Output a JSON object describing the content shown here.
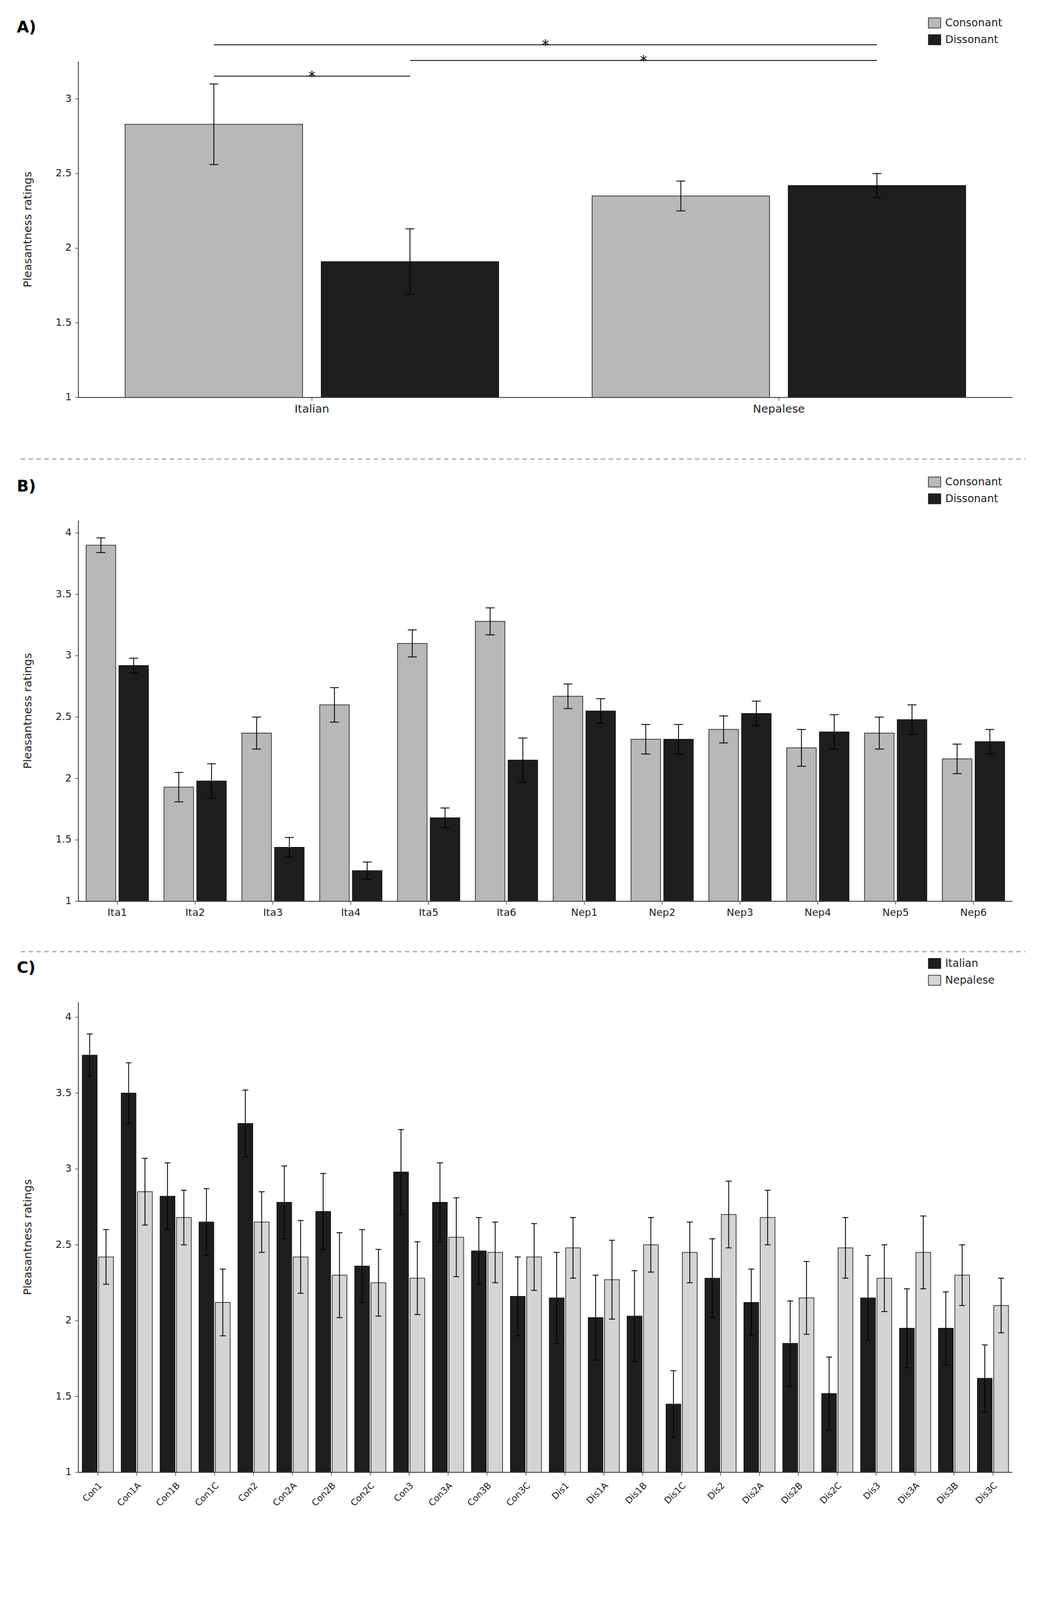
{
  "chart_data": [
    {
      "type": "bar",
      "title": "A)",
      "categories": [
        "Italian",
        "Nepalese"
      ],
      "series": [
        {
          "name": "Consonant",
          "color": "#b8b8b8",
          "values": [
            2.83,
            2.35
          ],
          "errors": [
            0.27,
            0.1
          ]
        },
        {
          "name": "Dissonant",
          "color": "#1e1e1e",
          "values": [
            1.91,
            2.42
          ],
          "errors": [
            0.22,
            0.08
          ]
        }
      ],
      "ylabel": "Pleasantness ratings",
      "ylim": [
        1,
        3.25
      ],
      "yticks": [
        1,
        1.5,
        2,
        2.5,
        3
      ],
      "grid": false,
      "legend": "upper right",
      "annotations": [
        {
          "text": "*",
          "between": [
            [
              0,
              0
            ],
            [
              1,
              0
            ]
          ]
        },
        {
          "text": "*",
          "between": [
            [
              0,
              0
            ],
            [
              1,
              1
            ]
          ]
        },
        {
          "text": "*",
          "between": [
            [
              1,
              0
            ],
            [
              1,
              1
            ]
          ]
        }
      ]
    },
    {
      "type": "bar",
      "title": "B)",
      "categories": [
        "Ita1",
        "Ita2",
        "Ita3",
        "Ita4",
        "Ita5",
        "Ita6",
        "Nep1",
        "Nep2",
        "Nep3",
        "Nep4",
        "Nep5",
        "Nep6"
      ],
      "series": [
        {
          "name": "Consonant",
          "color": "#b8b8b8",
          "values": [
            3.9,
            1.93,
            2.37,
            2.6,
            3.1,
            3.28,
            2.67,
            2.32,
            2.4,
            2.25,
            2.37,
            2.16
          ],
          "errors": [
            0.06,
            0.12,
            0.13,
            0.14,
            0.11,
            0.11,
            0.1,
            0.12,
            0.11,
            0.15,
            0.13,
            0.12
          ]
        },
        {
          "name": "Dissonant",
          "color": "#1e1e1e",
          "values": [
            2.92,
            1.98,
            1.44,
            1.25,
            1.68,
            2.15,
            2.55,
            2.32,
            2.53,
            2.38,
            2.48,
            2.3
          ],
          "errors": [
            0.06,
            0.14,
            0.08,
            0.07,
            0.08,
            0.18,
            0.1,
            0.12,
            0.1,
            0.14,
            0.12,
            0.1
          ]
        }
      ],
      "ylabel": "Pleasantness ratings",
      "ylim": [
        1,
        4.1
      ],
      "yticks": [
        1,
        1.5,
        2,
        2.5,
        3,
        3.5,
        4
      ],
      "grid": false,
      "legend": "upper right"
    },
    {
      "type": "bar",
      "title": "C)",
      "categories": [
        "Con1",
        "Con1A",
        "Con1B",
        "Con1C",
        "Con2",
        "Con2A",
        "Con2B",
        "Con2C",
        "Con3",
        "Con3A",
        "Con3B",
        "Con3C",
        "Dis1",
        "Dis1A",
        "Dis1B",
        "Dis1C",
        "Dis2",
        "Dis2A",
        "Dis2B",
        "Dis2C",
        "Dis3",
        "Dis3A",
        "Dis3B",
        "Dis3C"
      ],
      "series": [
        {
          "name": "Italian",
          "color": "#1e1e1e",
          "values": [
            3.75,
            3.5,
            2.82,
            2.65,
            3.3,
            2.78,
            2.72,
            2.36,
            2.98,
            2.78,
            2.46,
            2.16,
            2.15,
            2.02,
            2.03,
            1.45,
            2.28,
            2.12,
            1.85,
            1.52,
            2.15,
            1.95,
            1.95,
            1.62
          ],
          "errors": [
            0.14,
            0.2,
            0.22,
            0.22,
            0.22,
            0.24,
            0.25,
            0.24,
            0.28,
            0.26,
            0.22,
            0.26,
            0.3,
            0.28,
            0.3,
            0.22,
            0.26,
            0.22,
            0.28,
            0.24,
            0.28,
            0.26,
            0.24,
            0.22
          ]
        },
        {
          "name": "Nepalese",
          "color": "#d4d4d4",
          "values": [
            2.42,
            2.85,
            2.68,
            2.12,
            2.65,
            2.42,
            2.3,
            2.25,
            2.28,
            2.55,
            2.45,
            2.42,
            2.48,
            2.27,
            2.5,
            2.45,
            2.7,
            2.68,
            2.15,
            2.48,
            2.28,
            2.45,
            2.3,
            2.1
          ],
          "errors": [
            0.18,
            0.22,
            0.18,
            0.22,
            0.2,
            0.24,
            0.28,
            0.22,
            0.24,
            0.26,
            0.2,
            0.22,
            0.2,
            0.26,
            0.18,
            0.2,
            0.22,
            0.18,
            0.24,
            0.2,
            0.22,
            0.24,
            0.2,
            0.18
          ]
        }
      ],
      "ylabel": "Pleasantness ratings",
      "ylim": [
        1,
        4.1
      ],
      "yticks": [
        1,
        1.5,
        2,
        2.5,
        3,
        3.5,
        4
      ],
      "grid": false,
      "legend": "upper right"
    }
  ]
}
